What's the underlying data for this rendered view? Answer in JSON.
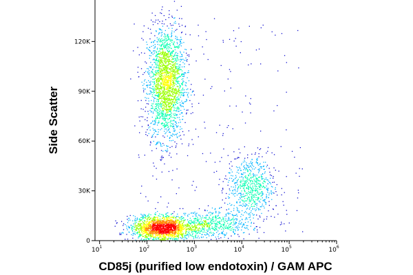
{
  "chart_data": {
    "type": "scatter",
    "title": "",
    "xlabel": "CD85j (purified low endotoxin) / GAM APC",
    "ylabel": "Side Scatter",
    "x_scale": "log",
    "xlim": [
      8,
      1000000
    ],
    "ylim": [
      0,
      145000
    ],
    "x_ticks": [
      {
        "base": "10",
        "exp": "1",
        "value": 10
      },
      {
        "base": "10",
        "exp": "2",
        "value": 100
      },
      {
        "base": "10",
        "exp": "3",
        "value": 1000
      },
      {
        "base": "10",
        "exp": "4",
        "value": 10000
      },
      {
        "base": "10",
        "exp": "5",
        "value": 100000
      },
      {
        "base": "10",
        "exp": "6",
        "value": 1000000
      }
    ],
    "y_ticks": [
      {
        "label": "0",
        "value": 0
      },
      {
        "label": "30K",
        "value": 30000
      },
      {
        "label": "60K",
        "value": 60000
      },
      {
        "label": "90K",
        "value": 90000
      },
      {
        "label": "120K",
        "value": 120000
      }
    ],
    "grid": false,
    "density_colormap": [
      "#1010d0",
      "#00b4ff",
      "#00ffb0",
      "#9aff00",
      "#ffff00",
      "#ff8800",
      "#ff0000"
    ],
    "populations": [
      {
        "x_center": 250,
        "y_center": 95000,
        "x_spread_decades": 0.2,
        "y_spread": 17000,
        "weight": 0.4
      },
      {
        "x_center": 200,
        "y_center": 8000,
        "x_spread_decades": 0.32,
        "y_spread": 3500,
        "weight": 0.35
      },
      {
        "x_center": 15000,
        "y_center": 32000,
        "x_spread_decades": 0.25,
        "y_spread": 10000,
        "weight": 0.13
      },
      {
        "x_center": 2500,
        "y_center": 10000,
        "x_spread_decades": 0.4,
        "y_spread": 4000,
        "weight": 0.1
      }
    ]
  }
}
